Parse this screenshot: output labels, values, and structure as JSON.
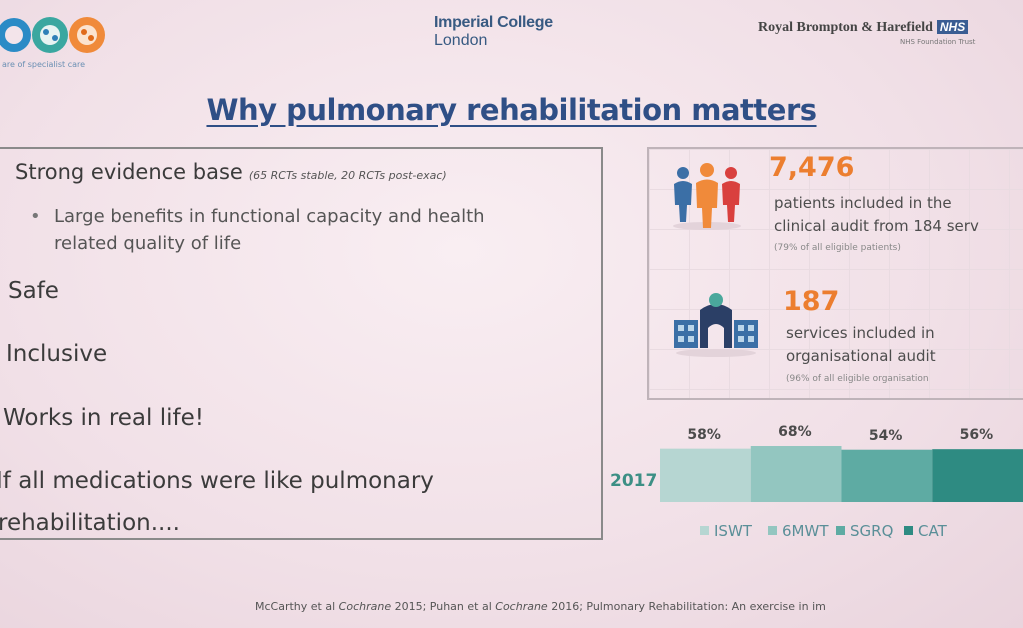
{
  "header": {
    "left_logo_tag": "are of specialist care",
    "imperial_line1": "Imperial College",
    "imperial_line2": "London",
    "rbh_name": "Royal Brompton & Harefield",
    "rbh_nhs": "NHS",
    "rbh_sub": "NHS Foundation Trust"
  },
  "title": "Why pulmonary rehabilitation matters",
  "evidence": {
    "heading": "Strong evidence base",
    "heading_note": "(65 RCTs stable, 20 RCTs post-exac)",
    "bullet_line1": "Large benefits in functional capacity and health",
    "bullet_line2": "related quality of life",
    "items": [
      "Safe",
      "Inclusive",
      "Works in real life!"
    ],
    "closing_line1": "If all medications were like pulmonary",
    "closing_line2": "rehabilitation...."
  },
  "stats": [
    {
      "number": "7,476",
      "line1": "patients included in the",
      "line2": "clinical audit from 184 serv",
      "sub": "(79% of all eligible patients)",
      "icon": "people-icon"
    },
    {
      "number": "187",
      "line1": "services included in",
      "line2": "organisational audit",
      "sub": "(96% of all eligible organisation",
      "icon": "hospital-icon"
    }
  ],
  "chart_data": {
    "type": "bar",
    "orientation": "horizontal-stacked",
    "categories": [
      "2017"
    ],
    "series": [
      {
        "name": "ISWT",
        "values": [
          58
        ],
        "label": "58%",
        "color": "#b6d6d2"
      },
      {
        "name": "6MWT",
        "values": [
          68
        ],
        "label": "68%",
        "color": "#93c6c0"
      },
      {
        "name": "SGRQ",
        "values": [
          54
        ],
        "label": "54%",
        "color": "#5eaba3"
      },
      {
        "name": "CAT",
        "values": [
          56
        ],
        "label": "56%",
        "color": "#2e8b82"
      }
    ]
  },
  "footer": {
    "part1": "McCarthy et al",
    "part2": "Cochrane",
    "part3": "2015; Puhan et al",
    "part4": "Cochrane",
    "part5": "2016; Pulmonary Rehabilitation: An exercise in im"
  },
  "colors": {
    "title": "#2f4f86",
    "accent_orange": "#ec7e2f",
    "teal": "#3c8f85"
  }
}
